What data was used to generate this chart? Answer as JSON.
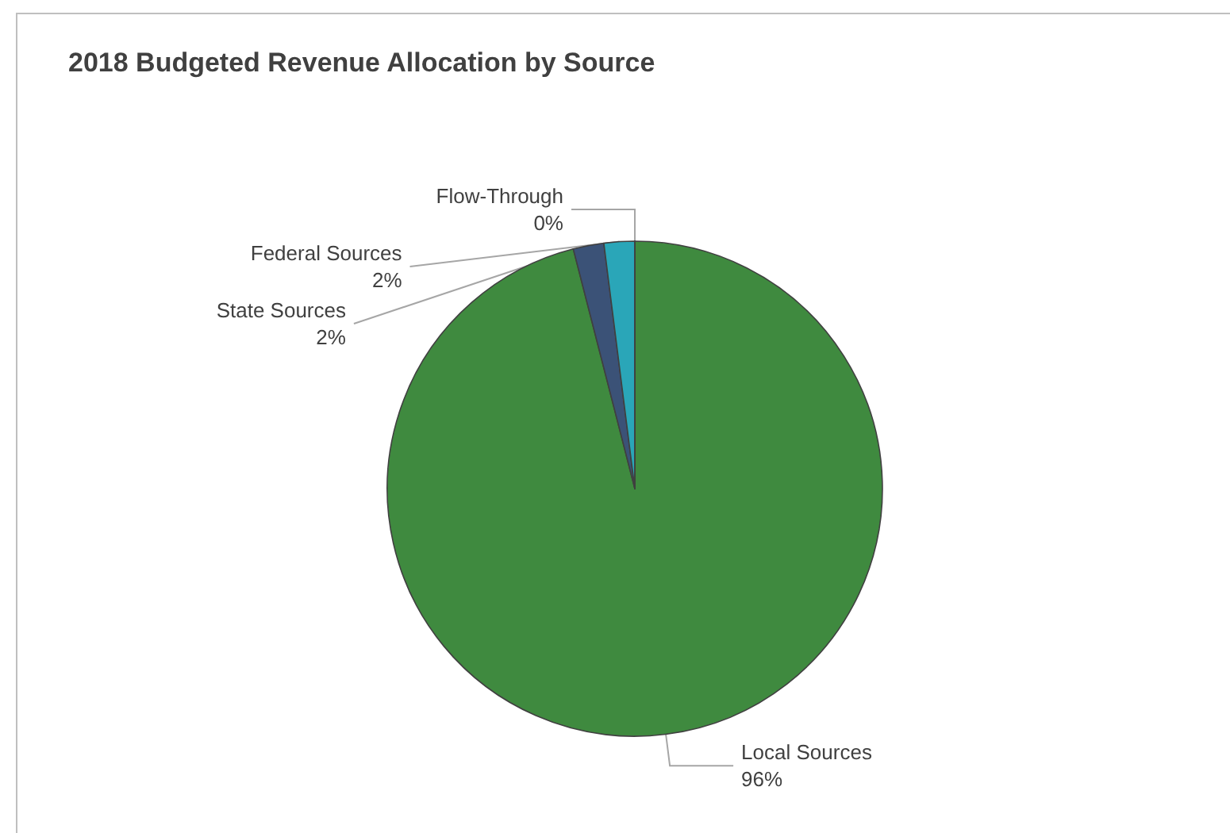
{
  "chart_data": {
    "type": "pie",
    "title": "2018 Budgeted Revenue Allocation by Source",
    "categories": [
      "Local Sources",
      "State Sources",
      "Federal Sources",
      "Flow-Through"
    ],
    "values": [
      96,
      2,
      2,
      0
    ],
    "value_labels": [
      "96%",
      "2%",
      "2%",
      "0%"
    ],
    "colors": [
      "#3f8a3f",
      "#3b5277",
      "#2aa6b8",
      "#7f9fbf"
    ],
    "legend": false
  }
}
